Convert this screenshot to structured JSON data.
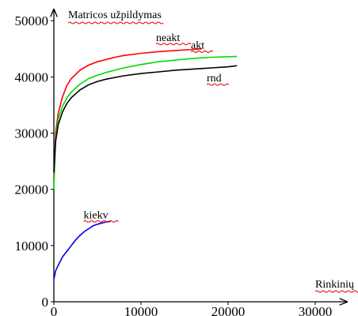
{
  "chart_data": {
    "type": "line",
    "ylabel": "Matricos užpildymas",
    "xlabel": "Rinkinių",
    "xlim": [
      0,
      32000
    ],
    "ylim": [
      0,
      52000
    ],
    "xticks": [
      0,
      10000,
      20000,
      30000
    ],
    "yticks": [
      0,
      10000,
      20000,
      30000,
      40000,
      50000
    ],
    "grid": false,
    "legend": "inline labels",
    "series": [
      {
        "name": "neakt",
        "color": "#ff0000",
        "points": [
          [
            0,
            22000
          ],
          [
            200,
            30000
          ],
          [
            500,
            33500
          ],
          [
            1000,
            36500
          ],
          [
            1500,
            38500
          ],
          [
            2000,
            39700
          ],
          [
            3000,
            41200
          ],
          [
            4000,
            42100
          ],
          [
            5000,
            42700
          ],
          [
            6000,
            43100
          ],
          [
            7000,
            43500
          ],
          [
            8000,
            43800
          ],
          [
            10000,
            44200
          ],
          [
            12000,
            44500
          ],
          [
            14000,
            44700
          ],
          [
            16000,
            44900
          ],
          [
            17000,
            45000
          ]
        ]
      },
      {
        "name": "akt",
        "color": "#00dd00",
        "points": [
          [
            0,
            20000
          ],
          [
            200,
            29000
          ],
          [
            500,
            32500
          ],
          [
            1000,
            34800
          ],
          [
            1500,
            36300
          ],
          [
            2000,
            37300
          ],
          [
            3000,
            38700
          ],
          [
            4000,
            39700
          ],
          [
            5000,
            40300
          ],
          [
            6000,
            40800
          ],
          [
            8000,
            41600
          ],
          [
            10000,
            42200
          ],
          [
            12000,
            42700
          ],
          [
            14000,
            43000
          ],
          [
            16000,
            43300
          ],
          [
            18000,
            43500
          ],
          [
            20000,
            43600
          ],
          [
            21000,
            43650
          ]
        ]
      },
      {
        "name": "rnd",
        "color": "#000000",
        "points": [
          [
            0,
            23000
          ],
          [
            200,
            28500
          ],
          [
            500,
            31500
          ],
          [
            1000,
            33800
          ],
          [
            1500,
            35300
          ],
          [
            2000,
            36300
          ],
          [
            3000,
            37700
          ],
          [
            4000,
            38600
          ],
          [
            5000,
            39200
          ],
          [
            6000,
            39600
          ],
          [
            8000,
            40200
          ],
          [
            10000,
            40600
          ],
          [
            12000,
            40900
          ],
          [
            14000,
            41200
          ],
          [
            16000,
            41400
          ],
          [
            18000,
            41600
          ],
          [
            20000,
            41800
          ],
          [
            21000,
            42000
          ]
        ]
      },
      {
        "name": "kiekv",
        "color": "#0000dd",
        "points": [
          [
            0,
            4000
          ],
          [
            200,
            5500
          ],
          [
            500,
            6500
          ],
          [
            1000,
            8000
          ],
          [
            1500,
            9000
          ],
          [
            2000,
            10000
          ],
          [
            2500,
            11000
          ],
          [
            3000,
            11800
          ],
          [
            3500,
            12500
          ],
          [
            4000,
            13000
          ],
          [
            4500,
            13500
          ],
          [
            5000,
            13800
          ],
          [
            5500,
            14000
          ],
          [
            6000,
            14200
          ],
          [
            6500,
            14300
          ]
        ]
      }
    ]
  }
}
